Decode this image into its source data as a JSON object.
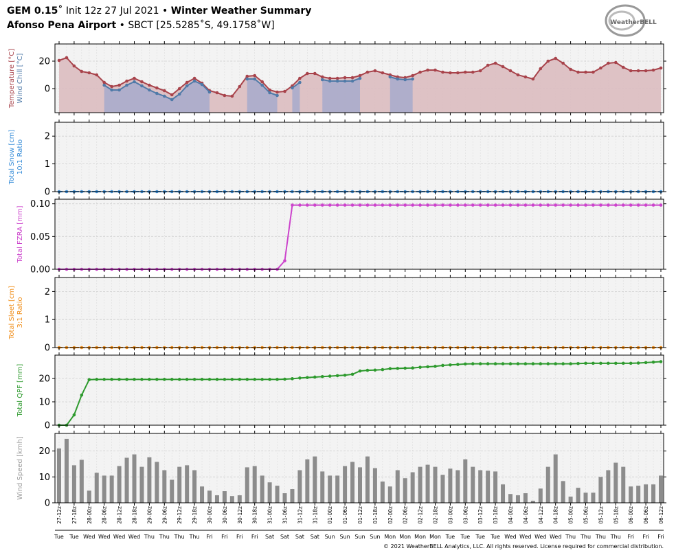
{
  "header": {
    "model": "GEM 0.15˚",
    "init": "Init 12z 27 Jul 2021",
    "separator": "•",
    "title": "Winter Weather Summary",
    "station": "Afonso Pena Airport",
    "location": "SBCT [25.5285˚S, 49.1758˚W]"
  },
  "logo": "WeatherBELL",
  "footer": "© 2021 WeatherBELL Analytics, LLC. All rights reserved. License required for commercial distribution.",
  "chart_data": [
    {
      "type": "line",
      "ylim": [
        -17.5,
        32.5
      ],
      "yticks": [
        0,
        20
      ],
      "grid": true,
      "series": [
        {
          "name": "Temperature [°C]",
          "color": "#a8434b",
          "fill": "#dcbcc0",
          "values": [
            20.5,
            22.5,
            16.5,
            12.5,
            11.5,
            10,
            4.5,
            1.5,
            2.5,
            5.5,
            7.5,
            5,
            2.5,
            0.5,
            -1.5,
            -4.5,
            0,
            4.5,
            7.5,
            4,
            -1.5,
            -3,
            -5,
            -5.5,
            1.5,
            9,
            9.5,
            5,
            -1,
            -2.5,
            -2,
            2,
            7.5,
            11,
            11,
            8.5,
            7.5,
            7.5,
            8,
            8,
            9.5,
            12,
            13,
            11.5,
            10,
            8.5,
            8,
            9.5,
            12,
            13.5,
            13.5,
            12,
            11.5,
            11.5,
            12,
            12,
            13,
            17,
            18.5,
            16,
            13,
            10,
            8.5,
            7,
            14.5,
            20,
            22,
            18.5,
            14,
            12,
            12,
            12,
            15,
            18.5,
            19,
            15.5,
            13,
            13,
            13,
            13.5,
            15
          ]
        },
        {
          "name": "Wind Chill [°C]",
          "color": "#4f7aa8",
          "fill": "#aaaccb",
          "values": [
            null,
            null,
            null,
            null,
            null,
            null,
            2.5,
            -1,
            -1,
            2.5,
            5,
            2,
            -1,
            -3.5,
            -5.5,
            -8,
            -4,
            2,
            5.5,
            3,
            -2.5,
            null,
            null,
            null,
            null,
            7,
            7,
            2.5,
            -3,
            -5,
            null,
            0.5,
            4.5,
            null,
            null,
            6.5,
            5.5,
            5.5,
            5.5,
            5.5,
            7.5,
            null,
            null,
            null,
            8.5,
            7,
            6.5,
            7,
            null,
            null,
            null,
            null,
            null,
            null,
            null,
            null,
            null,
            null,
            null,
            null,
            null,
            null,
            null,
            null,
            null,
            null,
            null,
            null,
            null,
            null,
            null,
            null,
            null,
            null,
            null,
            null,
            null,
            null,
            null,
            null,
            null
          ]
        }
      ]
    },
    {
      "type": "line",
      "ylim": [
        0,
        2.5
      ],
      "yticks": [
        0,
        1,
        2
      ],
      "grid": true,
      "ylabel_note": "10:1 Ratio",
      "series": [
        {
          "name": "Total Snow [cm]",
          "color": "#3b8fd9",
          "linestyle": "dashed",
          "values": [
            0,
            0,
            0,
            0,
            0,
            0,
            0,
            0,
            0,
            0,
            0,
            0,
            0,
            0,
            0,
            0,
            0,
            0,
            0,
            0,
            0,
            0,
            0,
            0,
            0,
            0,
            0,
            0,
            0,
            0,
            0,
            0,
            0,
            0,
            0,
            0,
            0,
            0,
            0,
            0,
            0,
            0,
            0,
            0,
            0,
            0,
            0,
            0,
            0,
            0,
            0,
            0,
            0,
            0,
            0,
            0,
            0,
            0,
            0,
            0,
            0,
            0,
            0,
            0,
            0,
            0,
            0,
            0,
            0,
            0,
            0,
            0,
            0,
            0,
            0,
            0,
            0,
            0,
            0,
            0,
            0
          ]
        }
      ]
    },
    {
      "type": "line",
      "ylim": [
        0,
        0.107
      ],
      "yticks": [
        {
          "value": 0,
          "label": "0.00"
        },
        {
          "value": 0.05,
          "label": "0.05"
        },
        {
          "value": 0.1,
          "label": "0.10"
        }
      ],
      "grid": true,
      "series": [
        {
          "name": "Total FZRA [mm]",
          "color": "#cc44cc",
          "values": [
            0,
            0,
            0,
            0,
            0,
            0,
            0,
            0,
            0,
            0,
            0,
            0,
            0,
            0,
            0,
            0,
            0,
            0,
            0,
            0,
            0,
            0,
            0,
            0,
            0,
            0,
            0,
            0,
            0,
            0,
            0.013,
            0.098,
            0.098,
            0.098,
            0.098,
            0.098,
            0.098,
            0.098,
            0.098,
            0.098,
            0.098,
            0.098,
            0.098,
            0.098,
            0.098,
            0.098,
            0.098,
            0.098,
            0.098,
            0.098,
            0.098,
            0.098,
            0.098,
            0.098,
            0.098,
            0.098,
            0.098,
            0.098,
            0.098,
            0.098,
            0.098,
            0.098,
            0.098,
            0.098,
            0.098,
            0.098,
            0.098,
            0.098,
            0.098,
            0.098,
            0.098,
            0.098,
            0.098,
            0.098,
            0.098,
            0.098,
            0.098,
            0.098,
            0.098,
            0.098,
            0.098
          ]
        }
      ]
    },
    {
      "type": "line",
      "ylim": [
        0,
        2.5
      ],
      "yticks": [
        0,
        1,
        2
      ],
      "grid": true,
      "ylabel_note": "3:1 Ratio",
      "series": [
        {
          "name": "Total Sleet [cm]",
          "color": "#f0901e",
          "linestyle": "dashed",
          "values": [
            0,
            0,
            0,
            0,
            0,
            0,
            0,
            0,
            0,
            0,
            0,
            0,
            0,
            0,
            0,
            0,
            0,
            0,
            0,
            0,
            0,
            0,
            0,
            0,
            0,
            0,
            0,
            0,
            0,
            0,
            0,
            0,
            0,
            0,
            0,
            0,
            0,
            0,
            0,
            0,
            0,
            0,
            0,
            0,
            0,
            0,
            0,
            0,
            0,
            0,
            0,
            0,
            0,
            0,
            0,
            0,
            0,
            0,
            0,
            0,
            0,
            0,
            0,
            0,
            0,
            0,
            0,
            0,
            0,
            0,
            0,
            0,
            0,
            0,
            0,
            0,
            0,
            0,
            0,
            0,
            0
          ]
        }
      ]
    },
    {
      "type": "line",
      "ylim": [
        0,
        30
      ],
      "yticks": [
        0,
        10,
        20
      ],
      "grid": true,
      "series": [
        {
          "name": "Total QPF [mm]",
          "color": "#2e9a2e",
          "values": [
            0,
            0,
            4.4,
            12.9,
            19.5,
            19.6,
            19.6,
            19.6,
            19.6,
            19.6,
            19.6,
            19.6,
            19.6,
            19.6,
            19.6,
            19.6,
            19.6,
            19.6,
            19.6,
            19.6,
            19.6,
            19.6,
            19.6,
            19.6,
            19.6,
            19.6,
            19.6,
            19.6,
            19.6,
            19.6,
            19.7,
            19.9,
            20.2,
            20.4,
            20.6,
            20.8,
            21.0,
            21.2,
            21.4,
            21.8,
            23.2,
            23.5,
            23.6,
            23.8,
            24.2,
            24.3,
            24.4,
            24.5,
            24.8,
            25.0,
            25.2,
            25.6,
            25.8,
            26.0,
            26.2,
            26.3,
            26.3,
            26.3,
            26.3,
            26.3,
            26.3,
            26.3,
            26.3,
            26.3,
            26.3,
            26.3,
            26.3,
            26.3,
            26.3,
            26.4,
            26.5,
            26.5,
            26.5,
            26.5,
            26.5,
            26.5,
            26.5,
            26.6,
            26.8,
            27.0,
            27.2
          ]
        }
      ]
    },
    {
      "type": "bar",
      "ylim": [
        0,
        26.8
      ],
      "yticks": [
        0,
        10,
        20
      ],
      "grid": true,
      "label_color": "#999999",
      "categories": [
        "27-12z",
        null,
        "27-18z",
        null,
        "28-00z",
        null,
        "28-06z",
        null,
        "28-12z",
        null,
        "28-18z",
        null,
        "29-00z",
        null,
        "29-06z",
        null,
        "29-12z",
        null,
        "29-18z",
        null,
        "30-00z",
        null,
        "30-06z",
        null,
        "30-12z",
        null,
        "30-18z",
        null,
        "31-00z",
        null,
        "31-06z",
        null,
        "31-12z",
        null,
        "31-18z",
        null,
        "01-00z",
        null,
        "01-06z",
        null,
        "01-12z",
        null,
        "01-18z",
        null,
        "02-00z",
        null,
        "02-06z",
        null,
        "02-12z",
        null,
        "02-18z",
        null,
        "03-00z",
        null,
        "03-06z",
        null,
        "03-12z",
        null,
        "03-18z",
        null,
        "04-00z",
        null,
        "04-06z",
        null,
        "04-12z",
        null,
        "04-18z",
        null,
        "05-00z",
        null,
        "05-06z",
        null,
        "05-12z",
        null,
        "05-18z",
        null,
        "06-00z",
        null,
        "06-06z",
        null,
        "06-12z"
      ],
      "days": [
        "Tue",
        null,
        "Tue",
        null,
        "Wed",
        null,
        "Wed",
        null,
        "Wed",
        null,
        "Wed",
        null,
        "Thu",
        null,
        "Thu",
        null,
        "Thu",
        null,
        "Thu",
        null,
        "Fri",
        null,
        "Fri",
        null,
        "Fri",
        null,
        "Fri",
        null,
        "Sat",
        null,
        "Sat",
        null,
        "Sat",
        null,
        "Sat",
        null,
        "Sun",
        null,
        "Sun",
        null,
        "Sun",
        null,
        "Sun",
        null,
        "Mon",
        null,
        "Mon",
        null,
        "Mon",
        null,
        "Mon",
        null,
        "Tue",
        null,
        "Tue",
        null,
        "Tue",
        null,
        "Tue",
        null,
        "Wed",
        null,
        "Wed",
        null,
        "Wed",
        null,
        "Wed",
        null,
        "Thu",
        null,
        "Thu",
        null,
        "Thu",
        null,
        "Thu",
        null,
        "Fri",
        null,
        "Fri",
        null,
        "Fri"
      ],
      "series": [
        {
          "name": "Wind Speed [kmh]",
          "color": "#8c8c8c",
          "values": [
            21,
            24.7,
            14.5,
            16.6,
            4.7,
            11.6,
            10.5,
            10.5,
            14.2,
            17.4,
            18.7,
            13.9,
            17.6,
            15.8,
            12.6,
            8.9,
            13.9,
            14.5,
            12.6,
            6.3,
            4.7,
            2.9,
            4.5,
            2.6,
            2.9,
            13.7,
            14.2,
            10.5,
            7.9,
            6.6,
            3.7,
            5.3,
            12.6,
            16.8,
            17.9,
            12.1,
            10.5,
            10.5,
            14.2,
            15.8,
            13.7,
            17.9,
            13.4,
            8.2,
            6.3,
            12.6,
            9.5,
            11.8,
            13.9,
            14.7,
            13.9,
            10.8,
            13.2,
            12.6,
            16.8,
            13.9,
            12.6,
            12.4,
            12.1,
            7.1,
            3.4,
            2.9,
            3.7,
            0.8,
            5.5,
            13.9,
            18.7,
            8.4,
            2.4,
            5.8,
            3.9,
            3.9,
            10,
            12.6,
            15.5,
            13.9,
            6.3,
            6.6,
            7.1,
            7.1,
            10.5
          ]
        }
      ]
    }
  ]
}
